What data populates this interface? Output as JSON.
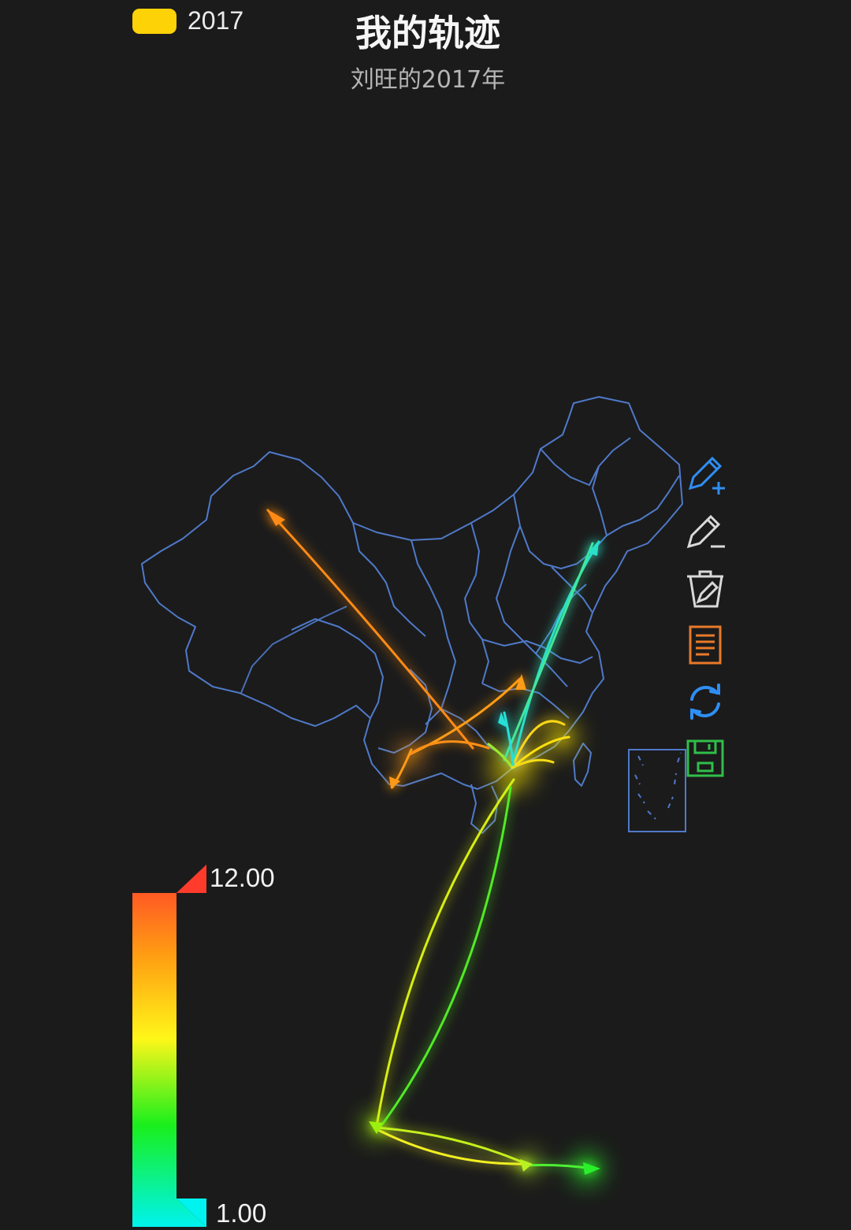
{
  "legend": {
    "label": "2017",
    "color": "#fdd207"
  },
  "header": {
    "title": "我的轨迹",
    "subtitle": "刘旺的2017年"
  },
  "toolbar": [
    {
      "name": "add-track-pen-icon",
      "color": "#2f8ef3"
    },
    {
      "name": "remove-track-pen-icon",
      "color": "#d9d9d9"
    },
    {
      "name": "clear-tracks-icon",
      "color": "#d9d9d9"
    },
    {
      "name": "list-document-icon",
      "color": "#e8792a"
    },
    {
      "name": "refresh-icon",
      "color": "#2f8ef3"
    },
    {
      "name": "save-icon",
      "color": "#2fbf49"
    }
  ],
  "scale": {
    "max_label": "12.00",
    "min_label": "1.00"
  },
  "map_colors": {
    "border": "#4f79c9",
    "background": "#1b1b1b"
  }
}
